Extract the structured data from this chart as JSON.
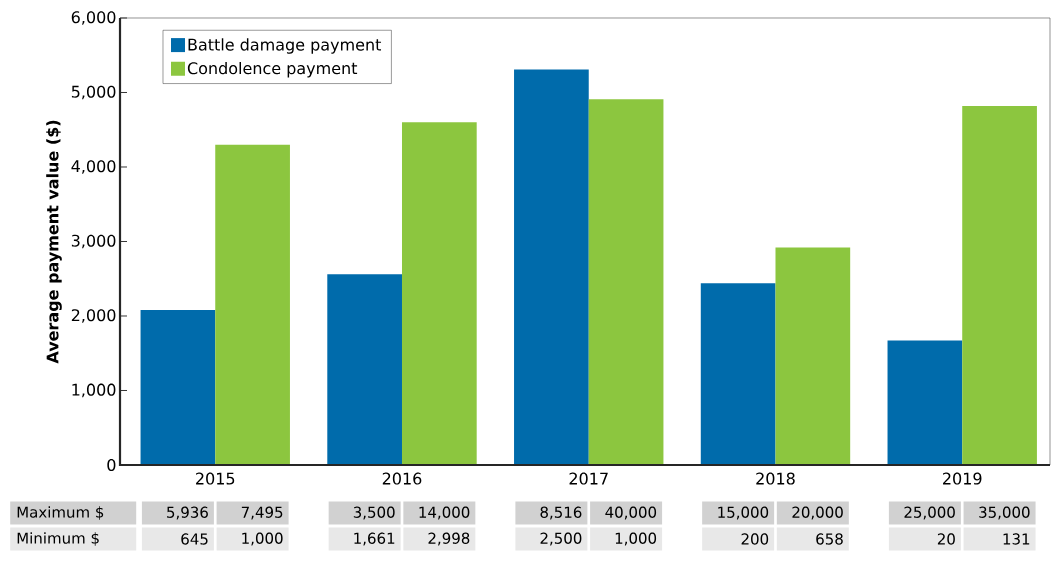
{
  "chart_data": {
    "type": "bar",
    "ylabel": "Average payment value ($)",
    "categories": [
      "2015",
      "2016",
      "2017",
      "2018",
      "2019"
    ],
    "series": [
      {
        "name": "Battle damage payment",
        "color": "#006bab",
        "values": [
          2080,
          2560,
          5310,
          2440,
          1670
        ]
      },
      {
        "name": "Condolence payment",
        "color": "#8cc63f",
        "values": [
          4300,
          4600,
          4910,
          2920,
          4820
        ]
      }
    ],
    "ylim": [
      0,
      6000
    ],
    "yticks": [
      {
        "value": 0,
        "label": "0"
      },
      {
        "value": 1000,
        "label": "1,000"
      },
      {
        "value": 2000,
        "label": "2,000"
      },
      {
        "value": 3000,
        "label": "3,000"
      },
      {
        "value": 4000,
        "label": "4,000"
      },
      {
        "value": 5000,
        "label": "5,000"
      },
      {
        "value": 6000,
        "label": "6,000"
      }
    ],
    "grid": false,
    "legend": "top left",
    "annotations": [
      "Maximum $",
      "5,936",
      "7,495",
      "3,500",
      "14,000",
      "8,516",
      "40,000",
      "15,000",
      "20,000",
      "25,000",
      "35,000",
      "Minimum $",
      "645",
      "1,000",
      "1,661",
      "2,998",
      "2,500",
      "1,000",
      "200",
      "658",
      "20",
      "131"
    ]
  }
}
